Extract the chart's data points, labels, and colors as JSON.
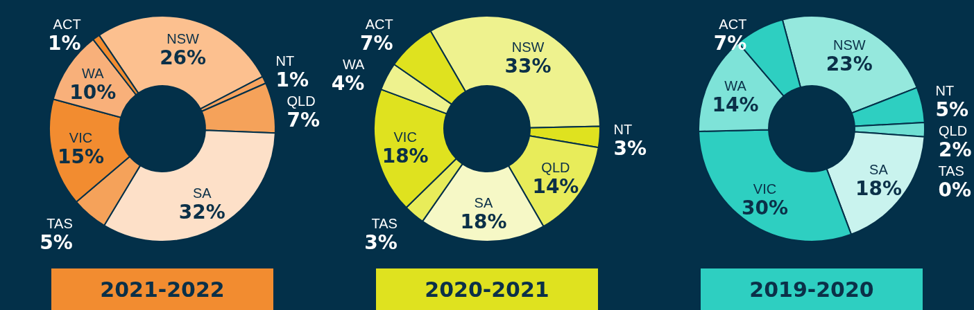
{
  "chart_data": [
    {
      "type": "donut",
      "title": "2021-2022",
      "categories": [
        "NSW",
        "NT",
        "QLD",
        "SA",
        "TAS",
        "VIC",
        "WA",
        "ACT"
      ],
      "values": [
        26,
        1,
        7,
        32,
        5,
        15,
        10,
        1
      ],
      "value_labels": [
        "26%",
        "1%",
        "7%",
        "32%",
        "5%",
        "15%",
        "10%",
        "1%"
      ],
      "colors": [
        "#fcc08f",
        "#f7a35e",
        "#f5a25a",
        "#fde0c8",
        "#f5a25a",
        "#f28c30",
        "#f8b07a",
        "#f28c30"
      ]
    },
    {
      "type": "donut",
      "title": "2020-2021",
      "categories": [
        "NSW",
        "NT",
        "QLD",
        "SA",
        "TAS",
        "VIC",
        "WA",
        "ACT"
      ],
      "values": [
        33,
        3,
        14,
        18,
        3,
        18,
        4,
        7
      ],
      "value_labels": [
        "33%",
        "3%",
        "14%",
        "18%",
        "3%",
        "18%",
        "4%",
        "7%"
      ],
      "colors": [
        "#eef28e",
        "#dfe21f",
        "#e8ec5a",
        "#f6f8c6",
        "#e8ec5a",
        "#dfe21f",
        "#eef28e",
        "#dfe21f"
      ]
    },
    {
      "type": "donut",
      "title": "2019-2020",
      "categories": [
        "NSW",
        "NT",
        "QLD",
        "TAS",
        "SA",
        "VIC",
        "WA",
        "ACT"
      ],
      "values": [
        23,
        5,
        2,
        0,
        18,
        30,
        14,
        7
      ],
      "value_labels": [
        "23%",
        "5%",
        "2%",
        "0%",
        "18%",
        "30%",
        "14%",
        "7%"
      ],
      "colors": [
        "#95e8dd",
        "#2ecfc1",
        "#6fdfd3",
        "#ffffff",
        "#c9f3ee",
        "#2ecfc1",
        "#7ee3d8",
        "#2ecfc1"
      ]
    }
  ]
}
